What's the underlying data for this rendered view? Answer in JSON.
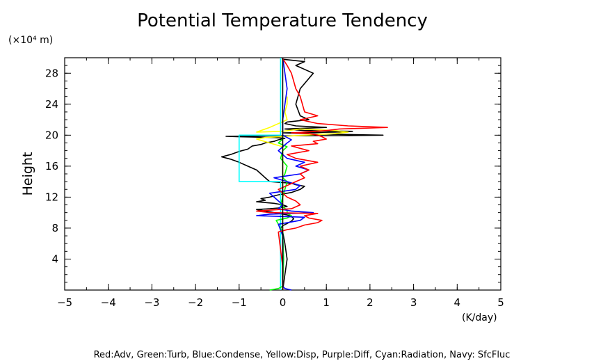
{
  "chart_data": {
    "type": "line",
    "title": "Potential Temperature Tendency",
    "xlabel": "(K/day)",
    "ylabel": "Height",
    "yunit": "(×10⁴ m)",
    "legend_text": "Red:Adv, Green:Turb, Blue:Condense, Yellow:Disp, Purple:Diff, Cyan:Radiation, Navy: SfcFluc",
    "xlim": [
      -5,
      5
    ],
    "ylim": [
      0,
      30
    ],
    "xticks": [
      "−5",
      "−4",
      "−3",
      "−2",
      "−1",
      "0",
      "1",
      "2",
      "3",
      "4",
      "5"
    ],
    "xtick_values": [
      -5,
      -4,
      -3,
      -2,
      -1,
      0,
      1,
      2,
      3,
      4,
      5
    ],
    "yticks": [
      "4",
      "8",
      "12",
      "16",
      "20",
      "24",
      "28"
    ],
    "ytick_values": [
      4,
      8,
      12,
      16,
      20,
      24,
      28
    ],
    "series": [
      {
        "color": "#000000",
        "x": [
          0,
          0.05,
          0.1,
          0.05,
          0,
          -0.05,
          0,
          0.1,
          0.2,
          0.25,
          0.2,
          0.1,
          0,
          -0.2,
          -0.4,
          -0.5,
          -0.6,
          -0.3,
          -0.1,
          0.1,
          0,
          -0.2,
          -0.4,
          -0.6,
          -0.4,
          -0.5,
          -0.3,
          -0.1,
          0.2,
          0.4,
          0.5,
          0.3,
          0.2,
          -0.3,
          -0.4,
          -0.5,
          -0.6,
          -0.8,
          -1.0,
          -1.2,
          -1.4,
          -1.2,
          -1.0,
          -0.8,
          -0.7,
          -0.5,
          -0.4,
          -0.2,
          -0.1,
          0.05,
          -0.2,
          -1.0,
          -1.3,
          -0.5,
          1.5,
          2.3,
          0.8,
          0,
          1.2,
          1.6,
          0.5,
          0.05,
          1.0,
          0.3,
          0.05,
          0.1,
          0.6,
          0.4,
          0.3,
          0.4,
          0.7,
          0.3,
          0.5,
          0,
          0
        ],
        "y": [
          0,
          2,
          4,
          6,
          7.5,
          8,
          8.3,
          8.6,
          8.9,
          9.2,
          9.5,
          9.7,
          9.8,
          10.0,
          10.2,
          10.3,
          10.4,
          10.5,
          10.6,
          10.8,
          11.0,
          11.2,
          11.3,
          11.4,
          11.6,
          11.8,
          12.0,
          12.3,
          12.6,
          13.0,
          13.4,
          13.6,
          13.8,
          14.0,
          14.5,
          15.0,
          15.5,
          16.0,
          16.5,
          16.9,
          17.2,
          17.5,
          17.9,
          18.2,
          18.6,
          18.8,
          19.0,
          19.2,
          19.4,
          19.6,
          19.7,
          19.8,
          19.85,
          19.9,
          19.95,
          20.0,
          20.15,
          20.3,
          20.4,
          20.5,
          20.6,
          20.8,
          21.0,
          21.2,
          21.5,
          21.7,
          22.0,
          22.5,
          24.0,
          26.0,
          28.0,
          29.0,
          29.5,
          29.8,
          30.0
        ]
      },
      {
        "color": "#ffff00",
        "x": [
          0,
          0,
          0,
          -0.3,
          -0.6,
          -0.4,
          0.2,
          0.5,
          1.2,
          1.5,
          1.2,
          0.4,
          0,
          -0.6,
          -0.3,
          0.1,
          0.05,
          0.1,
          0.1
        ],
        "y": [
          0,
          10,
          18.5,
          19.0,
          19.5,
          19.7,
          19.9,
          20.0,
          20.2,
          20.4,
          20.6,
          20.8,
          20.5,
          20.4,
          21.0,
          22.0,
          23.0,
          24.0,
          25.0
        ]
      },
      {
        "color": "#00ffff",
        "x": [
          -0.05,
          -0.05,
          -1.0,
          -1.0,
          -0.05,
          -0.05
        ],
        "y": [
          0,
          14.0,
          14.0,
          20.0,
          20.0,
          30.0
        ]
      },
      {
        "color": "#00ff00",
        "x": [
          -0.3,
          -0.1,
          0,
          0.02,
          0,
          -0.05,
          -0.1,
          -0.15,
          0.1,
          0.2,
          0.1,
          0.1,
          -0.05,
          0,
          0.05,
          0.1,
          0,
          0.05,
          0.1,
          -0.05,
          0,
          0.1,
          -0.1,
          0,
          0
        ],
        "y": [
          0,
          0.2,
          0.5,
          4,
          7.5,
          8.0,
          8.5,
          9.0,
          9.3,
          9.6,
          9.9,
          10.3,
          11,
          12,
          13,
          14,
          14.5,
          15,
          16,
          17,
          18,
          18.5,
          19,
          19.5,
          20
        ]
      },
      {
        "color": "#0000ff",
        "x": [
          0.2,
          0.05,
          0,
          0,
          -0.1,
          0.4,
          0.5,
          -0.6,
          -0.3,
          0.7,
          0.2,
          -0.1,
          0,
          -0.2,
          -0.3,
          0.3,
          0.4,
          0.1,
          -0.2,
          0.4,
          0.6,
          0.3,
          0.5,
          0.1,
          0,
          -0.1,
          0,
          0.1,
          0.2,
          0.1,
          0,
          0,
          0.1,
          0
        ],
        "y": [
          0,
          0.2,
          0.5,
          7,
          8.5,
          9.0,
          9.4,
          9.6,
          9.8,
          10.0,
          10.2,
          10.5,
          11,
          12,
          12.5,
          13,
          13.5,
          14.0,
          14.5,
          15.0,
          15.5,
          16,
          16.5,
          17,
          17.5,
          18,
          18.5,
          19,
          19.4,
          19.7,
          20,
          22,
          26,
          30
        ]
      },
      {
        "color": "#ff0000",
        "x": [
          0,
          0,
          -0.1,
          0.1,
          0.3,
          0.5,
          0.8,
          0.9,
          0.6,
          0.5,
          0.8,
          -0.3,
          -0.6,
          0.2,
          0.4,
          0.3,
          0.1,
          0,
          -0.1,
          0.1,
          0.3,
          0.5,
          0.4,
          0.6,
          0.4,
          0.8,
          0.3,
          0.1,
          0.6,
          0.4,
          0.2,
          0.8,
          0.7,
          1.0,
          0.9,
          0.8,
          0.6,
          0.2,
          0.5,
          1.0,
          1.3,
          2.4,
          1.5,
          0.8,
          0.4,
          0.8,
          0.5,
          0.4,
          0.3,
          0.2,
          0.1,
          0.02,
          0,
          0
        ],
        "y": [
          0,
          3,
          7.5,
          7.8,
          8.0,
          8.4,
          8.7,
          9.0,
          9.3,
          9.6,
          9.9,
          10.0,
          10.2,
          10.5,
          11,
          11.5,
          12,
          12.5,
          13,
          13.5,
          14,
          14.5,
          15,
          15.5,
          16,
          16.5,
          17,
          17.5,
          18,
          18.3,
          18.6,
          18.9,
          19.2,
          19.5,
          19.8,
          20.0,
          20.2,
          20.3,
          20.4,
          20.6,
          20.8,
          21.0,
          21.2,
          21.5,
          22,
          22.5,
          23,
          25,
          26,
          28,
          29,
          29.7,
          29.9,
          30
        ]
      }
    ]
  }
}
